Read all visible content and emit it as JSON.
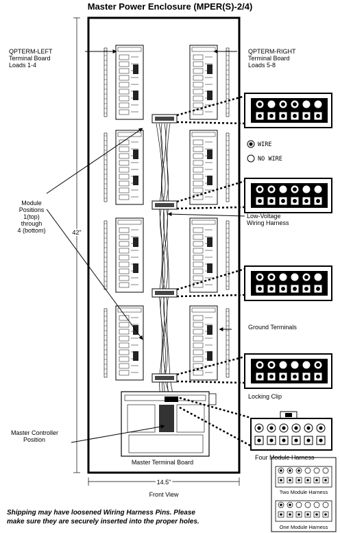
{
  "title": "Master Power Enclosure (MPER(S)-2/4)",
  "labels": {
    "qpterm_left": [
      "QPTERM-LEFT",
      "Terminal Board",
      "Loads 1-4"
    ],
    "qpterm_right": [
      "QPTERM-RIGHT",
      "Terminal Board",
      "Loads 5-8"
    ],
    "module_positions": [
      "Module",
      "Positions",
      "1(top)",
      "through",
      "4 (bottom)"
    ],
    "height": "42\"",
    "width": "14.5\"",
    "front_view": "Front View",
    "low_voltage": [
      "Low-Voltage",
      "Wiring Harness"
    ],
    "ground_terminals": "Ground Terminals",
    "locking_clip": "Locking Clip",
    "four_module": "Four Module Harness",
    "master_controller": [
      "Master Controller",
      "Position"
    ],
    "master_terminal_board": "Master Terminal Board",
    "two_module": "Two Module Harness",
    "one_module": "One Module Harness"
  },
  "legend": {
    "wire": "WIRE",
    "no_wire": "NO WIRE"
  },
  "note": [
    "Shipping may have loosened Wiring Harness Pins. Please",
    "make sure they are securely inserted into the proper holes."
  ],
  "connectors": [
    {
      "top": [
        "wire",
        "no",
        "wire",
        "wire",
        "no",
        "no"
      ],
      "bottom": [
        "wire",
        "wire",
        "wire",
        "wire",
        "wire",
        "wire"
      ]
    },
    {
      "top": [
        "wire",
        "wire",
        "no",
        "wire",
        "no",
        "no"
      ],
      "bottom": [
        "wire",
        "wire",
        "wire",
        "wire",
        "wire",
        "wire"
      ]
    },
    {
      "top": [
        "wire",
        "wire",
        "no",
        "no",
        "wire",
        "no"
      ],
      "bottom": [
        "wire",
        "wire",
        "wire",
        "wire",
        "wire",
        "wire"
      ]
    },
    {
      "top": [
        "wire",
        "wire",
        "no",
        "no",
        "no",
        "wire"
      ],
      "bottom": [
        "wire",
        "wire",
        "wire",
        "wire",
        "wire",
        "wire"
      ]
    }
  ]
}
